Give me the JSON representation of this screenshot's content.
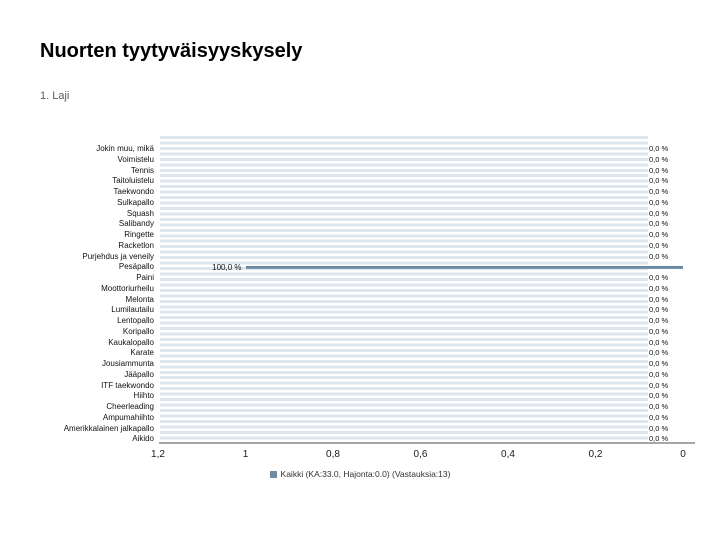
{
  "title": "Nuorten tyytyväisyyskysely",
  "question_title": "1. Laji",
  "chart_data": {
    "type": "bar",
    "orientation": "horizontal",
    "title": "1. Laji",
    "categories": [
      "Jokin muu, mikä",
      "Voimistelu",
      "Tennis",
      "Taitoluistelu",
      "Taekwondo",
      "Sulkapallo",
      "Squash",
      "Salibandy",
      "Ringette",
      "Racketlon",
      "Purjehdus ja veneily",
      "Pesäpallo",
      "Paini",
      "Moottoriurheilu",
      "Melonta",
      "Lumilautailu",
      "Lentopallo",
      "Koripallo",
      "Kaukalopallo",
      "Karate",
      "Jousiammunta",
      "Jääpallo",
      "ITF taekwondo",
      "Hiihto",
      "Cheerleading",
      "Ampumahiihto",
      "Amerikkalainen jalkapallo",
      "Aikido"
    ],
    "series": [
      {
        "name": "Kaikki (KA:33.0, Hajonta:0.0) (Vastauksia:13)",
        "values": [
          0,
          0,
          0,
          0,
          0,
          0,
          0,
          0,
          0,
          0,
          0,
          100,
          0,
          0,
          0,
          0,
          0,
          0,
          0,
          0,
          0,
          0,
          0,
          0,
          0,
          0,
          0,
          0
        ],
        "value_labels": [
          "0,0 %",
          "0,0 %",
          "0,0 %",
          "0,0 %",
          "0,0 %",
          "0,0 %",
          "0,0 %",
          "0,0 %",
          "0,0 %",
          "0,0 %",
          "0,0 %",
          "100,0 %",
          "0,0 %",
          "0,0 %",
          "0,0 %",
          "0,0 %",
          "0,0 %",
          "0,0 %",
          "0,0 %",
          "0,0 %",
          "0,0 %",
          "0,0 %",
          "0,0 %",
          "0,0 %",
          "0,0 %",
          "0,0 %",
          "0,0 %",
          "0,0 %"
        ]
      }
    ],
    "xaxis": {
      "tick_labels": [
        "1,2",
        "1",
        "0,8",
        "0,6",
        "0,4",
        "0,2",
        "0"
      ],
      "min": 0,
      "max": 1.2,
      "reversed": true,
      "unit": "%"
    },
    "legend": {
      "position": "bottom",
      "entries": [
        {
          "label": "Kaikki (KA:33.0, Hajonta:0.0) (Vastauksia:13)",
          "color": "#6e8da4"
        }
      ]
    },
    "grid": "horizontal-stripes",
    "colors": {
      "bar": "#6e8da4",
      "row_stripe": "#dde6ec",
      "axis_line": "#a6a6a6"
    }
  }
}
